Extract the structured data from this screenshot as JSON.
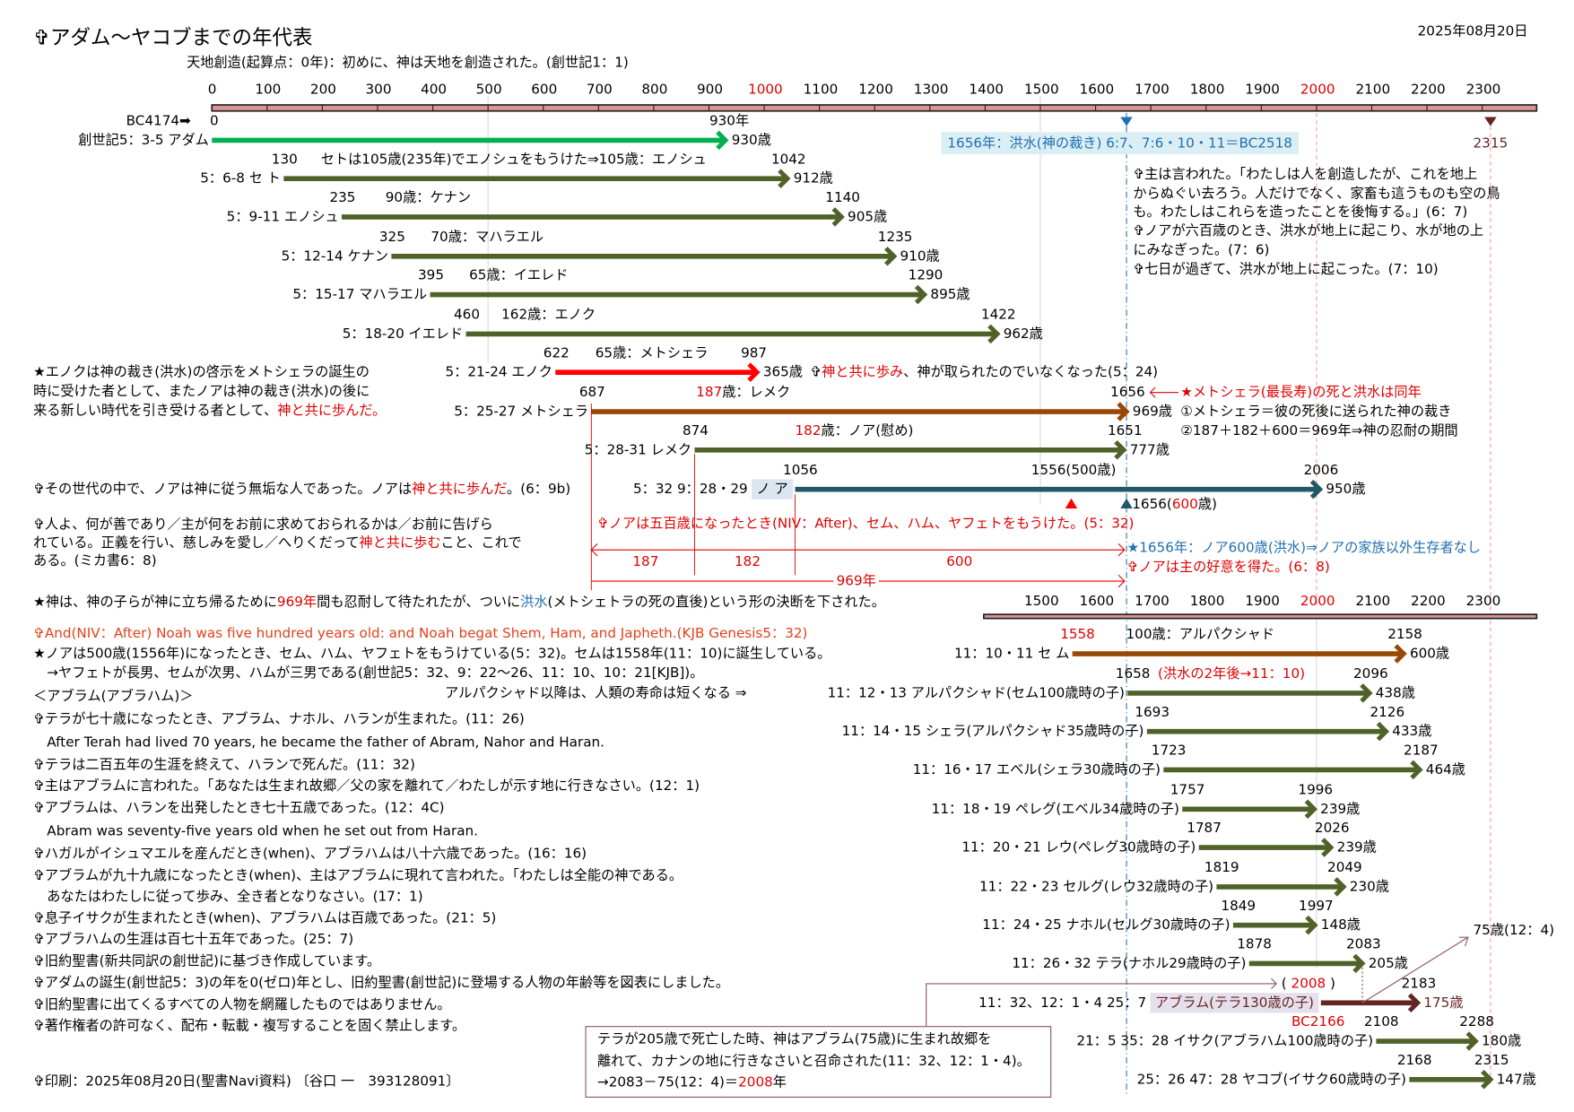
{
  "header": {
    "title": "✞アダム～ヤコブまでの年代表",
    "date": "2025年08月20日",
    "subtitle": "天地創造(起算点：0年)：初めに、神は天地を創造された。(創世記1：1)"
  },
  "colors": {
    "axis_fill": "#d99694",
    "adam": "#00b050",
    "olive": "#4f6228",
    "enoch": "#ff0000",
    "brown": "#984807",
    "noah": "#215967",
    "abram": "#632523",
    "accent_red": "#e00000",
    "accent_blue": "#1f6fb2",
    "flood_bg": "#daeef3",
    "abram_bg": "#e6e0ec",
    "noah_bg": "#dce6f1"
  },
  "axis": {
    "ticks": [
      0,
      100,
      200,
      300,
      400,
      500,
      600,
      700,
      800,
      900,
      1000,
      1100,
      1200,
      1300,
      1400,
      1500,
      1600,
      1700,
      1800,
      1900,
      2000,
      2100,
      2200,
      2300
    ],
    "highlight": [
      1000,
      2000
    ],
    "lower_ticks": [
      1500,
      1600,
      1700,
      1800,
      1900,
      2000,
      2100,
      2200,
      2300
    ]
  },
  "bc_start": "BC4174➡",
  "flood": {
    "year": 1656,
    "label": "1656年：洪水(神の裁き) 6:7、7:6・10・11＝BC2518"
  },
  "end_marker": {
    "year": 2315,
    "label": "2315"
  },
  "people": [
    {
      "label": "創世記5：3-5 アダム",
      "start": 0,
      "end": 930,
      "start_label": "0",
      "end_label": "930年",
      "age": "930歳",
      "color": "#00b050",
      "note": []
    },
    {
      "label": "5：6-8 セ ト",
      "start": 130,
      "end": 1042,
      "start_label": "130",
      "end_label": "1042",
      "age": "912歳",
      "color": "#4f6228",
      "note": [
        {
          "t": "セトは105歳(235年)でエノシュをもうけた⇒105歳：エノシュ"
        }
      ]
    },
    {
      "label": "5：9-11 エノシュ",
      "start": 235,
      "end": 1140,
      "start_label": "235",
      "end_label": "1140",
      "age": "905歳",
      "color": "#4f6228",
      "note": [
        {
          "t": "90歳：ケナン"
        }
      ]
    },
    {
      "label": "5：12-14 ケナン",
      "start": 325,
      "end": 1235,
      "start_label": "325",
      "end_label": "1235",
      "age": "910歳",
      "color": "#4f6228",
      "note": [
        {
          "t": "70歳：マハラエル"
        }
      ]
    },
    {
      "label": "5：15-17 マハラエル",
      "start": 395,
      "end": 1290,
      "start_label": "395",
      "end_label": "1290",
      "age": "895歳",
      "color": "#4f6228",
      "note": [
        {
          "t": "65歳：イエレド"
        }
      ]
    },
    {
      "label": "5：18-20 イエレド",
      "start": 460,
      "end": 1422,
      "start_label": "460",
      "end_label": "1422",
      "age": "962歳",
      "color": "#4f6228",
      "note": [
        {
          "t": "162歳：エノク"
        }
      ]
    },
    {
      "label": "5：21-24 エノク",
      "start": 622,
      "end": 987,
      "start_label": "622",
      "end_label": "987",
      "age": "365歳",
      "color": "#ff0000",
      "note": [
        {
          "t": "65歳：メトシェラ"
        }
      ]
    },
    {
      "label": "5：25-27 メトシェラ",
      "start": 687,
      "end": 1656,
      "start_label": "687",
      "end_label": "1656",
      "age": "969歳",
      "color": "#984807",
      "note": [
        {
          "t": "187",
          "c": "red"
        },
        {
          "t": "歳：レメク"
        }
      ]
    },
    {
      "label": "5：28-31 レメク",
      "start": 874,
      "end": 1651,
      "start_label": "874",
      "end_label": "1651",
      "age": "777歳",
      "color": "#4f6228",
      "note": [
        {
          "t": "182",
          "c": "red"
        },
        {
          "t": "歳：ノア(慰め)"
        }
      ]
    },
    {
      "label": "5：32 9：28・29",
      "boxed": "ノ ア",
      "box_bg": "#dce6f1",
      "start": 1056,
      "end": 2006,
      "start_label": "1056",
      "end_label": "2006",
      "age": "950歳",
      "color": "#215967",
      "note": [
        {
          "t": "1556(500歳)"
        }
      ]
    },
    {
      "label": "11：10・11 セ ム",
      "start": 1558,
      "end": 2158,
      "start_label": "1558",
      "start_color": "red",
      "end_label": "2158",
      "age": "600歳",
      "color": "#984807",
      "note": [
        {
          "t": "100歳：アルパクシャド"
        }
      ]
    },
    {
      "label": "11：12・13 アルパクシャド(セム100歳時の子)",
      "start": 1658,
      "end": 2096,
      "start_label": "1658",
      "end_label": "2096",
      "age": "438歳",
      "color": "#4f6228",
      "note": [
        {
          "t": "(洪水の2年後→11：10)",
          "c": "red"
        }
      ]
    },
    {
      "label": "11：14・15 シェラ(アルパクシャド35歳時の子)",
      "start": 1693,
      "end": 2126,
      "start_label": "1693",
      "end_label": "2126",
      "age": "433歳",
      "color": "#4f6228",
      "note": []
    },
    {
      "label": "11：16・17 エベル(シェラ30歳時の子)",
      "start": 1723,
      "end": 2187,
      "start_label": "1723",
      "end_label": "2187",
      "age": "464歳",
      "color": "#4f6228",
      "note": []
    },
    {
      "label": "11：18・19 ペレグ(エベル34歳時の子)",
      "start": 1757,
      "end": 1996,
      "start_label": "1757",
      "end_label": "1996",
      "age": "239歳",
      "color": "#4f6228",
      "note": []
    },
    {
      "label": "11：20・21 レウ(ペレグ30歳時の子)",
      "start": 1787,
      "end": 2026,
      "start_label": "1787",
      "end_label": "2026",
      "age": "239歳",
      "color": "#4f6228",
      "note": []
    },
    {
      "label": "11：22・23 セルグ(レウ32歳時の子)",
      "start": 1819,
      "end": 2049,
      "start_label": "1819",
      "end_label": "2049",
      "age": "230歳",
      "color": "#4f6228",
      "note": []
    },
    {
      "label": "11：24・25 ナホル(セルグ30歳時の子)",
      "start": 1849,
      "end": 1997,
      "start_label": "1849",
      "end_label": "1997",
      "age": "148歳",
      "color": "#4f6228",
      "note": []
    },
    {
      "label": "11：26・32 テラ(ナホル29歳時の子)",
      "start": 1878,
      "end": 2083,
      "start_label": "1878",
      "end_label": "2083",
      "age": "205歳",
      "color": "#4f6228",
      "note": []
    },
    {
      "label": "11：32、12：1・4 25：7",
      "boxed": "アブラム(テラ130歳の子)",
      "box_bg": "#e6e0ec",
      "start": 2008,
      "end": 2183,
      "start_label": "",
      "end_label": "2183",
      "age": "175歳",
      "color": "#632523",
      "note": []
    },
    {
      "label": "21：5 35：28 イサク(アブラハム100歳時の子)",
      "start": 2108,
      "end": 2288,
      "start_label": "2108",
      "end_label": "2288",
      "age": "180歳",
      "color": "#4f6228",
      "note": []
    },
    {
      "label": "25：26 47：28 ヤコブ(イサク60歳時の子)",
      "start": 2168,
      "end": 2315,
      "start_label": "2168",
      "end_label": "2315",
      "age": "147歳",
      "color": "#4f6228",
      "note": []
    }
  ],
  "genesis_quotes": [
    "✞主は言われた。「わたしは人を創造したが、これを地上",
    "からぬぐい去ろう。人だけでなく、家畜も這うものも空の鳥",
    "も。わたしはこれらを造ったことを後悔する。」(6：7)",
    "✞ノアが六百歳のとき、洪水が地上に起こり、水が地の上",
    "にみなぎった。(7：6)",
    "✞七日が過ぎて、洪水が地上に起こった。(7：10)"
  ],
  "enoch_note": {
    "a": "✞",
    "b": "神と共に歩み",
    "c": "、神が取られたのでいなくなった(5：24)"
  },
  "enoch_star": {
    "l1": "★エノクは神の裁き(洪水)の啓示をメトシェラの誕生の",
    "l2": "時に受けた者として、またノアは神の裁き(洪水)の後に",
    "l3a": "来る新しい時代を引き受ける者として、",
    "l3b": "神と共に歩んだ。"
  },
  "methuselah_note": {
    "star": "★メトシェラ(最長寿)の死と洪水は同年",
    "p1": "①メトシェラ＝彼の死後に送られた神の裁き",
    "p2": "②187＋182＋600＝969年⇒神の忍耐の期間"
  },
  "noah_line": {
    "a": "✞その世代の中で、ノアは神に従う無垢な人であった。ノアは",
    "b": "神と共に歩んだ",
    "c": "。(6：9b)"
  },
  "noah_600": {
    "year": "1656(",
    "age": "600",
    "unit": "歳)"
  },
  "micah": {
    "l1": "✞人よ、何が善であり／主が何をお前に求めておられるかは／お前に告げら",
    "l2a": "れている。正義を行い、慈しみを愛し／へりくだって",
    "l2b": "神と共に歩む",
    "l2c": "こと、これで",
    "l3": "ある。(ミカ書6：8)"
  },
  "noah_500": "✞ノアは五百歳になったとき(NIV：After)、セム、ハム、ヤフェトをもうけた。(5：32)",
  "brackets": {
    "a": "187",
    "b": "182",
    "c": "600",
    "total": "969年"
  },
  "flood_blue": "★1656年：ノア600歳(洪水)⇒ノアの家族以外生存者なし",
  "favor": "✞ノアは主の好意を得た。(6：8)",
  "patience": {
    "a": "★神は、神の子らが神に立ち帰るために",
    "b": "969年",
    "c": "間も忍耐して待たれたが、ついに",
    "d": "洪水",
    "e": "(メトシェトラの死の直後)という形の決断を下された。"
  },
  "lifespan_note": "アルパクシャド以降は、人類の寿命は短くなる ⇒",
  "notes_list": [
    {
      "t": "✞And(NIV：After) Noah was five hundred years old: and Noah begat Shem, Ham, and Japheth.(KJB Genesis5：32)",
      "c": "orange"
    },
    {
      "t": "★ノアは500歳(1556年)になったとき、セム、ハム、ヤフェトをもうけている(5：32)。セムは1558年(11：10)に誕生している。"
    },
    {
      "t": "　→ヤフェトが長男、セムが次男、ハムが三男である(創世記5：32、9：22～26、11：10、10：21[KJB])。"
    },
    {
      "t": "＜アブラム(アブラハム)＞"
    },
    {
      "t": "✞テラが七十歳になったとき、アブラム、ナホル、ハランが生まれた。(11：26)"
    },
    {
      "t": "　After Terah had lived 70 years,  he became the father of Abram, Nahor and Haran."
    },
    {
      "t": "✞テラは二百五年の生涯を終えて、ハランで死んだ。(11：32)"
    },
    {
      "t": "✞主はアブラムに言われた。「あなたは生まれ故郷／父の家を離れて／わたしが示す地に行きなさい。(12：1)"
    },
    {
      "t": "✞アブラムは、ハランを出発したとき七十五歳であった。(12：4C)"
    },
    {
      "t": "　Abram was seventy-five years old when he set out from Haran."
    },
    {
      "t": "✞ハガルがイシュマエルを産んだとき(when)、アブラハムは八十六歳であった。(16：16)"
    },
    {
      "t": "✞アブラムが九十九歳になったとき(when)、主はアブラムに現れて言われた。「わたしは全能の神である。"
    },
    {
      "t": "　あなたはわたしに従って歩み、全き者となりなさい。(17：1)"
    },
    {
      "t": "✞息子イサクが生まれたとき(when)、アブラハムは百歳であった。(21：5)"
    },
    {
      "t": "✞アブラハムの生涯は百七十五年であった。(25：7)"
    },
    {
      "t": "✞旧約聖書(新共同訳の創世記)に基づき作成しています。"
    },
    {
      "t": "✞アダムの誕生(創世記5：3)の年を0(ゼロ)年とし、旧約聖書(創世記)に登場する人物の年齢等を図表にしました。"
    },
    {
      "t": "✞旧約聖書に出てくるすべての人物を網羅したものではありません。"
    },
    {
      "t": "✞著作権者の許可なく、配布・転載・複写することを固く禁止します。"
    }
  ],
  "footer": "✞印刷：2025年08月20日(聖書Navi資料) 〔谷口 一　393128091〕",
  "abram_notes": {
    "year_open": "(",
    "year": "2008",
    "year_close": ")",
    "bc": "BC2166",
    "call_age": "75歳(12：4)"
  },
  "terah_box": {
    "l1": "テラが205歳で死亡した時、神はアブラム(75歳)に生まれ故郷を",
    "l2": "離れて、カナンの地に行きなさいと召命された(11：32、12：1・4)。",
    "l3a": "→2083－75(12：4)＝",
    "l3b": "2008",
    "l3c": "年"
  }
}
